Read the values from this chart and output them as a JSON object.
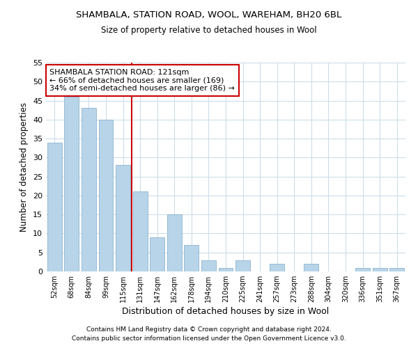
{
  "title1": "SHAMBALA, STATION ROAD, WOOL, WAREHAM, BH20 6BL",
  "title2": "Size of property relative to detached houses in Wool",
  "xlabel": "Distribution of detached houses by size in Wool",
  "ylabel": "Number of detached properties",
  "categories": [
    "52sqm",
    "68sqm",
    "84sqm",
    "99sqm",
    "115sqm",
    "131sqm",
    "147sqm",
    "162sqm",
    "178sqm",
    "194sqm",
    "210sqm",
    "225sqm",
    "241sqm",
    "257sqm",
    "273sqm",
    "288sqm",
    "304sqm",
    "320sqm",
    "336sqm",
    "351sqm",
    "367sqm"
  ],
  "values": [
    34,
    46,
    43,
    40,
    28,
    21,
    9,
    15,
    7,
    3,
    1,
    3,
    0,
    2,
    0,
    2,
    0,
    0,
    1,
    1,
    1
  ],
  "bar_color": "#b8d4e8",
  "bar_edge_color": "#8ab4d0",
  "vline_x": 4.5,
  "vline_color": "#cc0000",
  "annotation_title": "SHAMBALA STATION ROAD: 121sqm",
  "annotation_line1": "← 66% of detached houses are smaller (169)",
  "annotation_line2": "34% of semi-detached houses are larger (86) →",
  "annotation_box_color": "#ffffff",
  "annotation_box_edge": "#cc0000",
  "ylim": [
    0,
    55
  ],
  "yticks": [
    0,
    5,
    10,
    15,
    20,
    25,
    30,
    35,
    40,
    45,
    50,
    55
  ],
  "footer1": "Contains HM Land Registry data © Crown copyright and database right 2024.",
  "footer2": "Contains public sector information licensed under the Open Government Licence v3.0.",
  "bg_color": "#ffffff",
  "grid_color": "#ccdde8"
}
